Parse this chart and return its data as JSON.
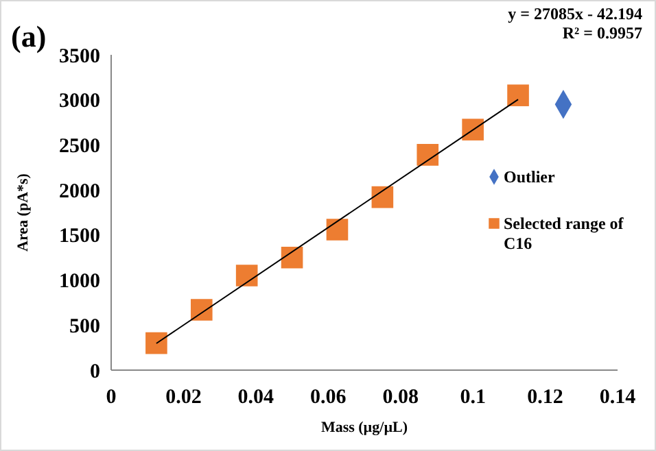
{
  "chart_data": {
    "type": "scatter",
    "title": "(a)",
    "xlabel": "Mass (µg/µL)",
    "ylabel": "Area (pA*s)",
    "xlim": [
      0,
      0.14
    ],
    "ylim": [
      0,
      3500
    ],
    "xticks": [
      0,
      0.02,
      0.04,
      0.06,
      0.08,
      0.1,
      0.12,
      0.14
    ],
    "yticks": [
      0,
      500,
      1000,
      1500,
      2000,
      2500,
      3000,
      3500
    ],
    "grid": false,
    "legend": "right",
    "annotations": [
      "y = 27085x - 42.194",
      "R² = 0.9957"
    ],
    "series": [
      {
        "name": "Outlier",
        "color": "#4472c4",
        "marker": "diamond",
        "x": [
          0.125
        ],
        "values": [
          2950
        ]
      },
      {
        "name": "Selected range of C16",
        "color": "#ed7d31",
        "marker": "square",
        "x": [
          0.0125,
          0.025,
          0.0375,
          0.05,
          0.0625,
          0.075,
          0.0875,
          0.1,
          0.1125
        ],
        "values": [
          300,
          670,
          1050,
          1250,
          1560,
          1920,
          2390,
          2670,
          3050
        ]
      },
      {
        "type": "line",
        "color": "#000000",
        "marker": "none",
        "x": [
          0.0125,
          0.1125
        ],
        "values": [
          296.4,
          3004.9
        ]
      }
    ]
  }
}
